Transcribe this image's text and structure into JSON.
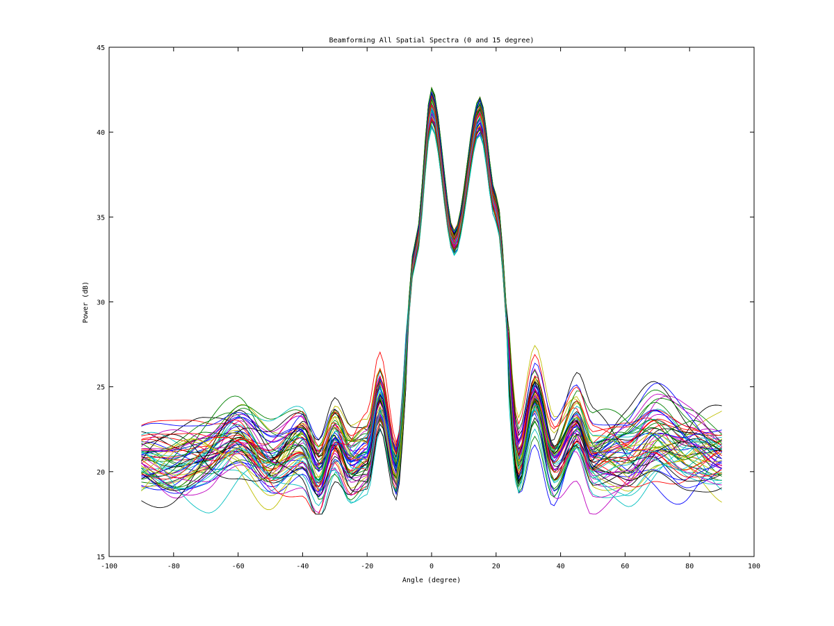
{
  "chart_data": {
    "type": "line",
    "title": "Beamforming All Spatial Spectra (0 and 15 degree)",
    "xlabel": "Angle (degree)",
    "ylabel": "Power (dB)",
    "xlim": [
      -100,
      100
    ],
    "ylim": [
      15,
      45
    ],
    "xticks": [
      -100,
      -80,
      -60,
      -40,
      -20,
      0,
      20,
      40,
      60,
      80,
      100
    ],
    "yticks": [
      15,
      20,
      25,
      30,
      35,
      40,
      45
    ],
    "grid": false,
    "legend": "none",
    "x_range": [
      -90,
      90
    ],
    "x_step": 1,
    "curve_count": 60,
    "envelope_approx": {
      "x": [
        -90,
        -80,
        -70,
        -60,
        -50,
        -40,
        -35,
        -30,
        -25,
        -20,
        -16,
        -11,
        -5,
        0,
        7,
        15,
        20,
        27,
        32,
        38,
        45,
        50,
        60,
        70,
        80,
        90
      ],
      "y": [
        20.8,
        20.6,
        20.8,
        21.5,
        20.2,
        21.5,
        19.8,
        22.0,
        20.5,
        21.0,
        24.5,
        20.3,
        33.0,
        41.5,
        33.5,
        41.0,
        35.5,
        20.7,
        24.5,
        20.5,
        22.5,
        20.4,
        20.7,
        22.0,
        21.3,
        20.9
      ]
    },
    "series_colors": [
      "#0000ff",
      "#008000",
      "#ff0000",
      "#00bfbf",
      "#bf00bf",
      "#bfbf00",
      "#000000"
    ]
  }
}
